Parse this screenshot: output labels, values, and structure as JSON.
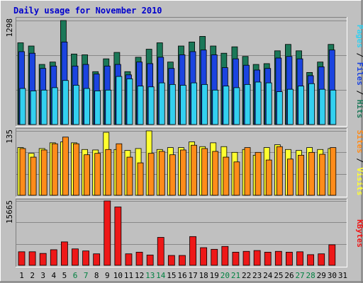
{
  "title": "Daily usage for November 2010",
  "colors": {
    "background": "#c0c0c0",
    "frame": "#ffffff",
    "grid": "#888888",
    "hits": "#1b7858",
    "files": "#1b44e0",
    "pages": "#33d0f0",
    "visits": "#ffff30",
    "sites": "#ff8c1a",
    "kbytes": "#ee1818",
    "title": "#0000cc",
    "weekend_tick": "#008040",
    "weekday_tick": "#000000"
  },
  "chart_data": [
    {
      "type": "bar",
      "panel": "hits-files-pages",
      "ymax_label": "1298",
      "ylim": [
        0,
        1298
      ],
      "categories": [
        "1",
        "2",
        "3",
        "4",
        "5",
        "6",
        "7",
        "8",
        "9",
        "10",
        "11",
        "12",
        "13",
        "14",
        "15",
        "16",
        "17",
        "18",
        "19",
        "20",
        "21",
        "22",
        "23",
        "24",
        "25",
        "26",
        "27",
        "28",
        "29",
        "30",
        "31"
      ],
      "series": [
        {
          "name": "Hits",
          "color_key": "hits",
          "values": [
            1020,
            980,
            750,
            780,
            1298,
            880,
            870,
            660,
            820,
            900,
            660,
            840,
            940,
            1020,
            780,
            980,
            1030,
            1100,
            980,
            890,
            970,
            850,
            750,
            760,
            920,
            1000,
            920,
            650,
            780,
            1000,
            0
          ]
        },
        {
          "name": "Files",
          "color_key": "files",
          "values": [
            910,
            890,
            700,
            730,
            1030,
            730,
            750,
            630,
            730,
            750,
            620,
            780,
            760,
            840,
            700,
            870,
            910,
            930,
            870,
            710,
            820,
            740,
            680,
            700,
            830,
            850,
            820,
            610,
            720,
            930,
            0
          ]
        },
        {
          "name": "Pages",
          "color_key": "pages",
          "values": [
            450,
            420,
            430,
            460,
            550,
            490,
            450,
            420,
            430,
            600,
            570,
            480,
            470,
            520,
            500,
            490,
            520,
            500,
            430,
            480,
            460,
            500,
            530,
            520,
            410,
            440,
            480,
            510,
            440,
            430,
            0
          ]
        }
      ],
      "legend": [
        "Pages",
        "Files",
        "Hits"
      ]
    },
    {
      "type": "bar",
      "panel": "visits-sites",
      "ymax_label": "135",
      "ylim": [
        0,
        135
      ],
      "categories": [
        "1",
        "2",
        "3",
        "4",
        "5",
        "6",
        "7",
        "8",
        "9",
        "10",
        "11",
        "12",
        "13",
        "14",
        "15",
        "16",
        "17",
        "18",
        "19",
        "20",
        "21",
        "22",
        "23",
        "24",
        "25",
        "26",
        "27",
        "28",
        "29",
        "30",
        "31"
      ],
      "series": [
        {
          "name": "Visits",
          "color_key": "visits",
          "values": [
            100,
            88,
            98,
            110,
            112,
            110,
            96,
            95,
            132,
            96,
            94,
            98,
            135,
            96,
            100,
            100,
            112,
            102,
            110,
            102,
            90,
            96,
            84,
            100,
            106,
            96,
            94,
            100,
            96,
            98,
            0
          ]
        },
        {
          "name": "Sites",
          "color_key": "sites",
          "values": [
            98,
            80,
            95,
            108,
            122,
            108,
            85,
            88,
            96,
            108,
            80,
            68,
            88,
            92,
            85,
            95,
            105,
            98,
            92,
            80,
            70,
            100,
            90,
            74,
            102,
            76,
            84,
            90,
            86,
            100,
            0
          ]
        }
      ],
      "legend": [
        "Sites",
        "Visits"
      ]
    },
    {
      "type": "bar",
      "panel": "kbytes",
      "ymax_label": "15665",
      "ylim": [
        0,
        15665
      ],
      "categories": [
        "1",
        "2",
        "3",
        "4",
        "5",
        "6",
        "7",
        "8",
        "9",
        "10",
        "11",
        "12",
        "13",
        "14",
        "15",
        "16",
        "17",
        "18",
        "19",
        "20",
        "21",
        "22",
        "23",
        "24",
        "25",
        "26",
        "27",
        "28",
        "29",
        "30",
        "31"
      ],
      "series": [
        {
          "name": "KBytes",
          "color_key": "kbytes",
          "values": [
            3300,
            3300,
            2900,
            3800,
            5700,
            4000,
            3500,
            2800,
            15665,
            14200,
            2800,
            3200,
            2500,
            6800,
            2400,
            2400,
            7000,
            4300,
            3900,
            4600,
            3200,
            3400,
            3600,
            3200,
            3400,
            3200,
            3300,
            2600,
            2800,
            5000,
            0
          ]
        }
      ],
      "legend": [
        "KBytes"
      ]
    }
  ],
  "x_ticks": [
    {
      "label": "1",
      "weekend": false
    },
    {
      "label": "2",
      "weekend": false
    },
    {
      "label": "3",
      "weekend": false
    },
    {
      "label": "4",
      "weekend": false
    },
    {
      "label": "5",
      "weekend": false
    },
    {
      "label": "6",
      "weekend": true
    },
    {
      "label": "7",
      "weekend": true
    },
    {
      "label": "8",
      "weekend": false
    },
    {
      "label": "9",
      "weekend": false
    },
    {
      "label": "10",
      "weekend": false
    },
    {
      "label": "11",
      "weekend": false
    },
    {
      "label": "12",
      "weekend": false
    },
    {
      "label": "13",
      "weekend": true
    },
    {
      "label": "14",
      "weekend": true
    },
    {
      "label": "15",
      "weekend": false
    },
    {
      "label": "16",
      "weekend": false
    },
    {
      "label": "17",
      "weekend": false
    },
    {
      "label": "18",
      "weekend": false
    },
    {
      "label": "19",
      "weekend": false
    },
    {
      "label": "20",
      "weekend": true
    },
    {
      "label": "21",
      "weekend": true
    },
    {
      "label": "22",
      "weekend": false
    },
    {
      "label": "23",
      "weekend": false
    },
    {
      "label": "24",
      "weekend": false
    },
    {
      "label": "25",
      "weekend": false
    },
    {
      "label": "26",
      "weekend": false
    },
    {
      "label": "27",
      "weekend": true
    },
    {
      "label": "28",
      "weekend": true
    },
    {
      "label": "29",
      "weekend": false
    },
    {
      "label": "30",
      "weekend": false
    },
    {
      "label": "31",
      "weekend": false
    }
  ]
}
